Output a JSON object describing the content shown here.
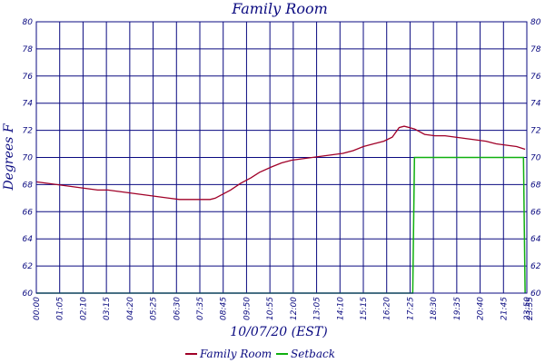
{
  "chart_data": {
    "type": "line",
    "title": "Family Room",
    "ylabel": "Degrees F",
    "xlabel": "10/07/20 (EST)",
    "ylim": [
      60,
      80
    ],
    "yticks": [
      60,
      62,
      64,
      66,
      68,
      70,
      72,
      74,
      76,
      78,
      80
    ],
    "xlim_minutes": [
      0,
      1440
    ],
    "xtick_labels": [
      "00:00",
      "01:05",
      "02:10",
      "03:15",
      "04:20",
      "05:25",
      "06:30",
      "07:35",
      "08:45",
      "09:50",
      "10:55",
      "12:00",
      "13:05",
      "14:10",
      "15:15",
      "16:20",
      "17:25",
      "18:30",
      "19:35",
      "20:40",
      "21:45",
      "23:50",
      "23:55"
    ],
    "grid": true,
    "legend_position": "bottom",
    "colors": {
      "grid": "#0a0a80",
      "text": "#0a0a80",
      "family_room": "#a00028",
      "setback": "#10b010"
    },
    "series": [
      {
        "name": "Family Room",
        "color": "#a00028",
        "x": [
          "00:00",
          "00:30",
          "01:00",
          "01:30",
          "02:00",
          "02:30",
          "03:00",
          "03:30",
          "04:00",
          "04:30",
          "05:00",
          "05:30",
          "06:00",
          "06:30",
          "07:00",
          "07:30",
          "08:00",
          "08:30",
          "08:45",
          "09:00",
          "09:30",
          "10:00",
          "10:30",
          "10:55",
          "11:30",
          "12:00",
          "12:30",
          "13:00",
          "13:30",
          "14:00",
          "14:30",
          "15:00",
          "15:30",
          "16:00",
          "16:30",
          "17:00",
          "17:25",
          "17:45",
          "18:00",
          "18:30",
          "19:00",
          "19:30",
          "20:00",
          "20:30",
          "21:00",
          "21:30",
          "22:00",
          "22:30",
          "23:00",
          "23:30",
          "23:55"
        ],
        "values": [
          68.2,
          68.1,
          68.0,
          67.9,
          67.8,
          67.7,
          67.6,
          67.6,
          67.5,
          67.4,
          67.3,
          67.2,
          67.1,
          67.0,
          66.9,
          66.9,
          66.9,
          66.9,
          67.0,
          67.2,
          67.6,
          68.1,
          68.5,
          68.9,
          69.3,
          69.6,
          69.8,
          69.9,
          70.0,
          70.1,
          70.2,
          70.3,
          70.5,
          70.8,
          71.0,
          71.2,
          71.5,
          72.2,
          72.3,
          72.1,
          71.7,
          71.6,
          71.6,
          71.5,
          71.4,
          71.3,
          71.2,
          71.0,
          70.9,
          70.8,
          70.6
        ]
      },
      {
        "name": "Setback",
        "color": "#10b010",
        "x": [
          "00:00",
          "18:20",
          "18:25",
          "18:30",
          "23:50",
          "23:55"
        ],
        "values": [
          60,
          60,
          60,
          70,
          70,
          60
        ]
      }
    ]
  }
}
